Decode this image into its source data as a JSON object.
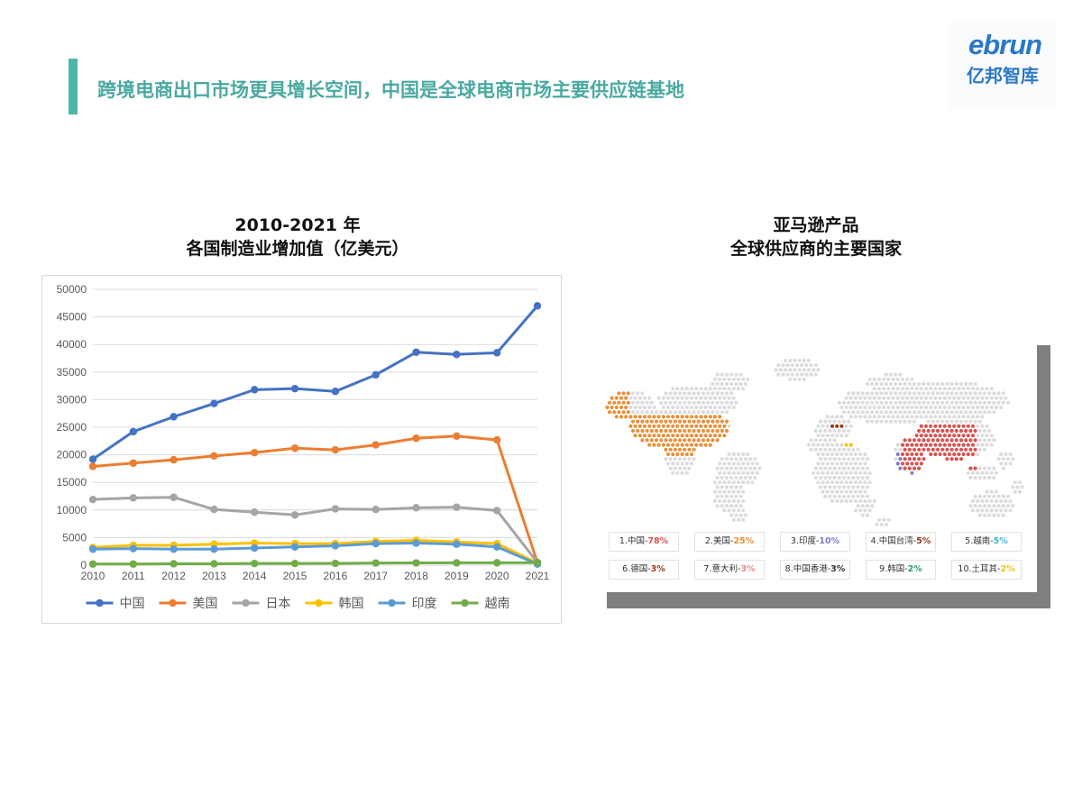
{
  "header": {
    "title": "跨境电商出口市场更具增长空间，中国是全球电商市场主要供应链基地",
    "logo_en": "ebrun",
    "logo_cn": "亿邦智库",
    "accent_color": "#4db6a8"
  },
  "left_chart": {
    "title_line1": "2010-2021 年",
    "title_line2": "各国制造业增加值（亿美元）"
  },
  "right_panel": {
    "title_line1": "亚马逊产品",
    "title_line2": "全球供应商的主要国家",
    "legend": [
      {
        "rank": "1.中国-",
        "pct": "78%",
        "color": "#d9534f"
      },
      {
        "rank": "2.美国-",
        "pct": "25%",
        "color": "#e8913a"
      },
      {
        "rank": "3.印度-",
        "pct": "10%",
        "color": "#7b7fc4"
      },
      {
        "rank": "4.中国台湾-",
        "pct": "5%",
        "color": "#9a3b1c"
      },
      {
        "rank": "5.越南-",
        "pct": "5%",
        "color": "#40b6d6"
      },
      {
        "rank": "6.德国-",
        "pct": "3%",
        "color": "#9a3b1c"
      },
      {
        "rank": "7.意大利-",
        "pct": "3%",
        "color": "#e88a8a"
      },
      {
        "rank": "8.中国香港-",
        "pct": "3%",
        "color": "#333333"
      },
      {
        "rank": "9.韩国-",
        "pct": "2%",
        "color": "#2a9a6a"
      },
      {
        "rank": "10.土耳其-",
        "pct": "2%",
        "color": "#f0c419"
      }
    ]
  },
  "chart_data": {
    "type": "line",
    "x": [
      "2010",
      "2011",
      "2012",
      "2013",
      "2014",
      "2015",
      "2016",
      "2017",
      "2018",
      "2019",
      "2020",
      "2021"
    ],
    "ylim": [
      0,
      50000
    ],
    "yticks": [
      "0",
      "5000",
      "10000",
      "15000",
      "20000",
      "25000",
      "30000",
      "35000",
      "40000",
      "45000",
      "50000"
    ],
    "grid": true,
    "legend_position": "bottom",
    "series": [
      {
        "name": "中国",
        "color": "#4472c4",
        "values": [
          19200,
          24200,
          26900,
          29300,
          31800,
          32000,
          31500,
          34500,
          38600,
          38200,
          38500,
          47000
        ]
      },
      {
        "name": "美国",
        "color": "#ed7d31",
        "values": [
          17900,
          18500,
          19100,
          19800,
          20400,
          21200,
          20900,
          21800,
          23000,
          23400,
          22700,
          500
        ]
      },
      {
        "name": "日本",
        "color": "#a5a5a5",
        "values": [
          11900,
          12200,
          12300,
          10100,
          9600,
          9100,
          10200,
          10100,
          10400,
          10500,
          9900,
          500
        ]
      },
      {
        "name": "韩国",
        "color": "#ffc000",
        "values": [
          3200,
          3600,
          3600,
          3800,
          4000,
          3900,
          3900,
          4300,
          4500,
          4200,
          3900,
          400
        ]
      },
      {
        "name": "印度",
        "color": "#5b9bd5",
        "values": [
          2900,
          3000,
          2900,
          2900,
          3100,
          3300,
          3500,
          3900,
          4000,
          3800,
          3300,
          200
        ]
      },
      {
        "name": "越南",
        "color": "#70ad47",
        "values": [
          200,
          200,
          250,
          250,
          300,
          300,
          320,
          380,
          400,
          420,
          430,
          450
        ]
      }
    ]
  }
}
